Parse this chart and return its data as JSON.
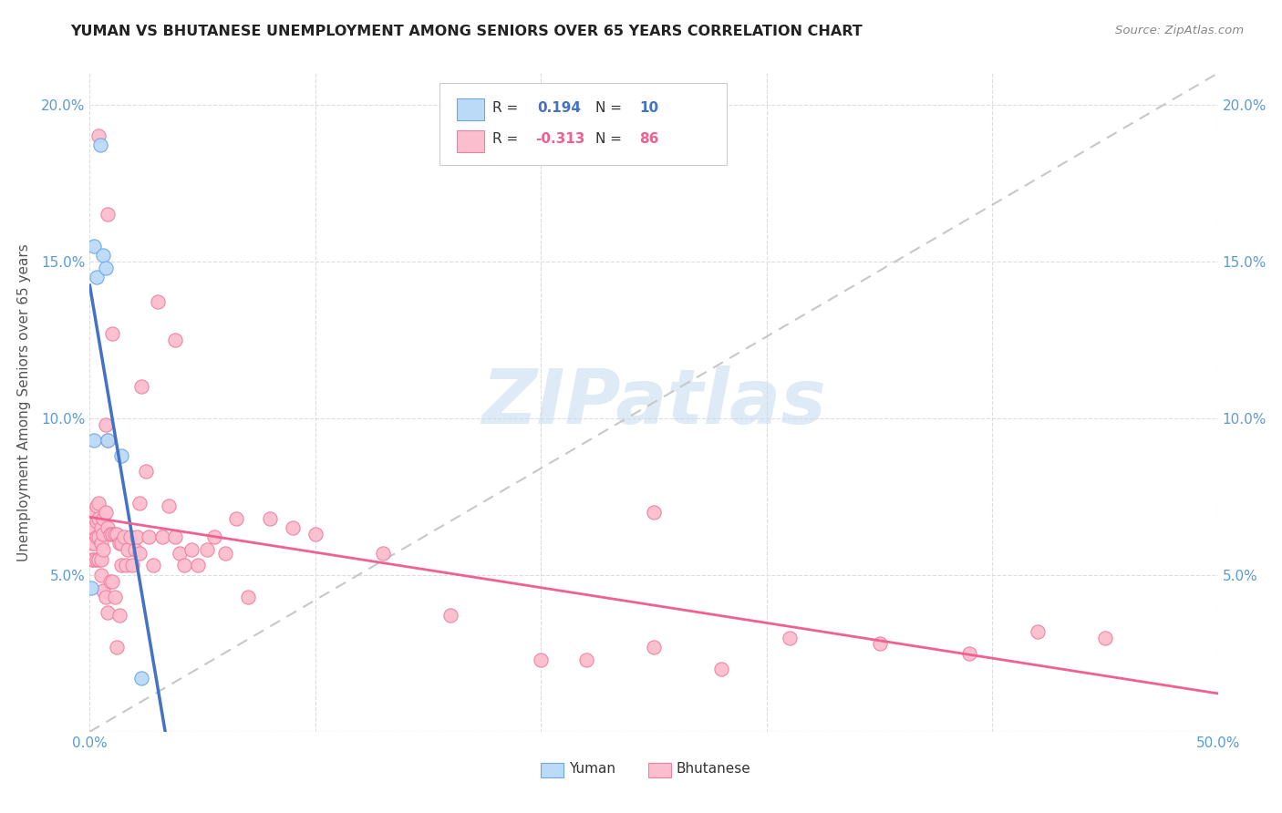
{
  "title": "YUMAN VS BHUTANESE UNEMPLOYMENT AMONG SENIORS OVER 65 YEARS CORRELATION CHART",
  "source": "Source: ZipAtlas.com",
  "ylabel": "Unemployment Among Seniors over 65 years",
  "xlim": [
    0.0,
    0.5
  ],
  "ylim": [
    0.0,
    0.21
  ],
  "xticks": [
    0.0,
    0.5
  ],
  "xticklabels": [
    "0.0%",
    "50.0%"
  ],
  "yticks": [
    0.0,
    0.05,
    0.1,
    0.15,
    0.2
  ],
  "yticklabels_left": [
    "",
    "5.0%",
    "10.0%",
    "15.0%",
    "20.0%"
  ],
  "yticklabels_right": [
    "",
    "5.0%",
    "10.0%",
    "15.0%",
    "20.0%"
  ],
  "yuman_color": "#BBDAF7",
  "bhutanese_color": "#FBBECE",
  "yuman_edge_color": "#6CA8E8",
  "bhutanese_edge_color": "#F080A0",
  "yuman_line_color": "#4472C4",
  "bhutanese_line_color": "#F06090",
  "dash_line_color": "#C8C8C8",
  "legend_r_yuman": "0.194",
  "legend_n_yuman": "10",
  "legend_r_bhutanese": "-0.313",
  "legend_n_bhutanese": "86",
  "yuman_x": [
    0.0008,
    0.002,
    0.002,
    0.003,
    0.0045,
    0.006,
    0.007,
    0.008,
    0.014,
    0.023
  ],
  "yuman_y": [
    0.046,
    0.155,
    0.093,
    0.145,
    0.187,
    0.152,
    0.148,
    0.093,
    0.088,
    0.017
  ],
  "bhutanese_x": [
    0.001,
    0.001,
    0.001,
    0.002,
    0.002,
    0.002,
    0.002,
    0.003,
    0.003,
    0.003,
    0.003,
    0.004,
    0.004,
    0.004,
    0.004,
    0.005,
    0.005,
    0.005,
    0.005,
    0.006,
    0.006,
    0.006,
    0.006,
    0.007,
    0.007,
    0.007,
    0.008,
    0.008,
    0.008,
    0.009,
    0.009,
    0.01,
    0.01,
    0.011,
    0.011,
    0.012,
    0.012,
    0.013,
    0.013,
    0.014,
    0.014,
    0.015,
    0.016,
    0.017,
    0.018,
    0.019,
    0.02,
    0.021,
    0.022,
    0.023,
    0.025,
    0.026,
    0.028,
    0.03,
    0.032,
    0.035,
    0.038,
    0.04,
    0.042,
    0.045,
    0.048,
    0.052,
    0.055,
    0.06,
    0.065,
    0.07,
    0.08,
    0.09,
    0.1,
    0.13,
    0.16,
    0.2,
    0.22,
    0.25,
    0.28,
    0.31,
    0.35,
    0.39,
    0.42,
    0.45,
    0.004,
    0.008,
    0.01,
    0.022,
    0.038,
    0.25
  ],
  "bhutanese_y": [
    0.065,
    0.06,
    0.055,
    0.07,
    0.065,
    0.06,
    0.055,
    0.072,
    0.067,
    0.062,
    0.055,
    0.073,
    0.068,
    0.062,
    0.055,
    0.065,
    0.06,
    0.055,
    0.05,
    0.068,
    0.063,
    0.058,
    0.045,
    0.098,
    0.07,
    0.043,
    0.093,
    0.065,
    0.038,
    0.063,
    0.048,
    0.063,
    0.048,
    0.063,
    0.043,
    0.063,
    0.027,
    0.06,
    0.037,
    0.06,
    0.053,
    0.062,
    0.053,
    0.058,
    0.062,
    0.053,
    0.058,
    0.062,
    0.057,
    0.11,
    0.083,
    0.062,
    0.053,
    0.137,
    0.062,
    0.072,
    0.062,
    0.057,
    0.053,
    0.058,
    0.053,
    0.058,
    0.062,
    0.057,
    0.068,
    0.043,
    0.068,
    0.065,
    0.063,
    0.057,
    0.037,
    0.023,
    0.023,
    0.027,
    0.02,
    0.03,
    0.028,
    0.025,
    0.032,
    0.03,
    0.19,
    0.165,
    0.127,
    0.073,
    0.125,
    0.07
  ],
  "watermark_text": "ZIPatlas",
  "background_color": "#FFFFFF"
}
